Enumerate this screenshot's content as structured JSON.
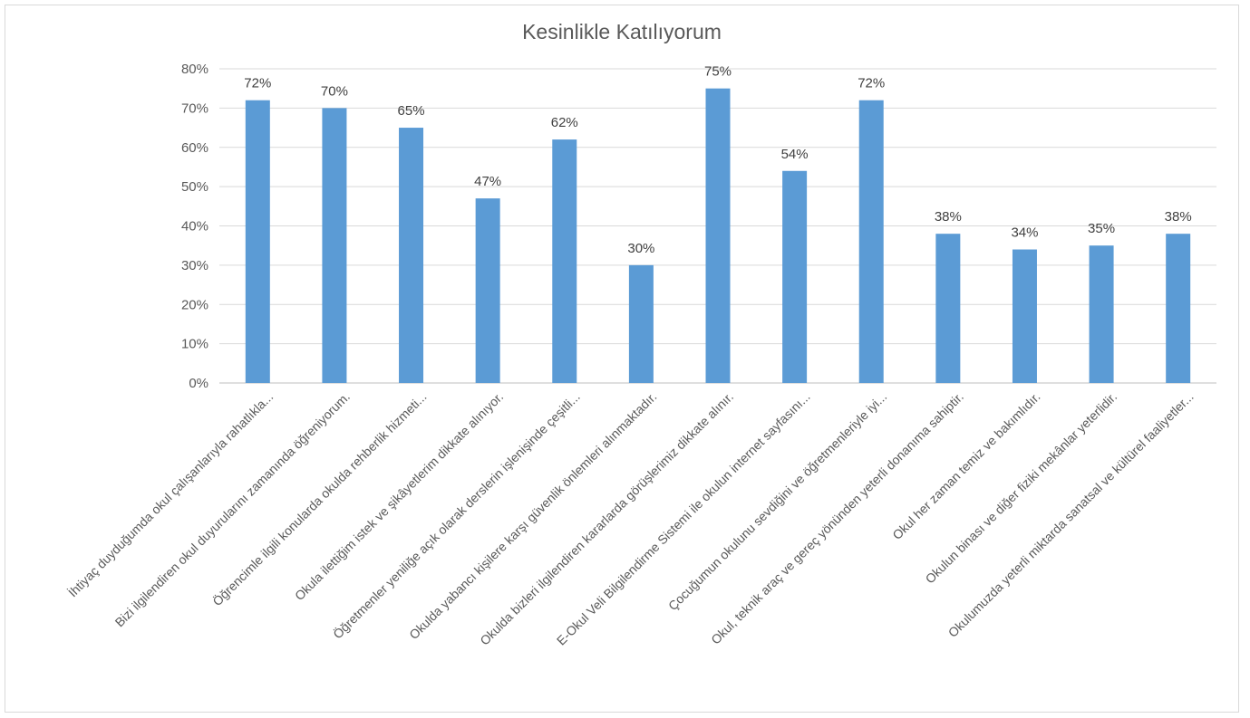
{
  "chart_data": {
    "type": "bar",
    "title": "Kesinlikle Katılıyorum",
    "xlabel": "",
    "ylabel": "",
    "ylim": [
      0,
      80
    ],
    "ytick_step": 10,
    "ytick_suffix": "%",
    "grid": true,
    "bar_color": "#5b9bd5",
    "categories": [
      "İhtiyaç duyduğumda okul çalışanlarıyla rahatlıkla...",
      "Bizi ilgilendiren okul duyurularını zamanında öğreniyorum.",
      "Öğrencimle ilgili konularda okulda rehberlik hizmeti...",
      "Okula ilettiğim istek ve şikâyetlerim dikkate alınıyor.",
      "Öğretmenler yeniliğe açık olarak derslerin işlenişinde çeşitli...",
      "Okulda yabancı kişilere karşı güvenlik önlemleri alınmaktadır.",
      "Okulda bizleri ilgilendiren kararlarda görüşlerimiz dikkate alınır.",
      "E-Okul Veli Bilgilendirme Sistemi ile okulun internet sayfasını...",
      "Çocuğumun okulunu sevdiğini ve öğretmenleriyle iyi...",
      "Okul, teknik araç ve gereç yönünden yeterli donanıma sahiptir.",
      "Okul her zaman temiz ve bakımlıdır.",
      "Okulun binası ve diğer fiziki mekânlar yeterlidir.",
      "Okulumuzda yeterli miktarda sanatsal ve kültürel faaliyetler..."
    ],
    "values": [
      72,
      70,
      65,
      47,
      62,
      30,
      75,
      54,
      72,
      38,
      34,
      35,
      38
    ],
    "data_labels": [
      "72%",
      "70%",
      "65%",
      "47%",
      "62%",
      "30%",
      "75%",
      "54%",
      "72%",
      "38%",
      "34%",
      "35%",
      "38%"
    ]
  }
}
